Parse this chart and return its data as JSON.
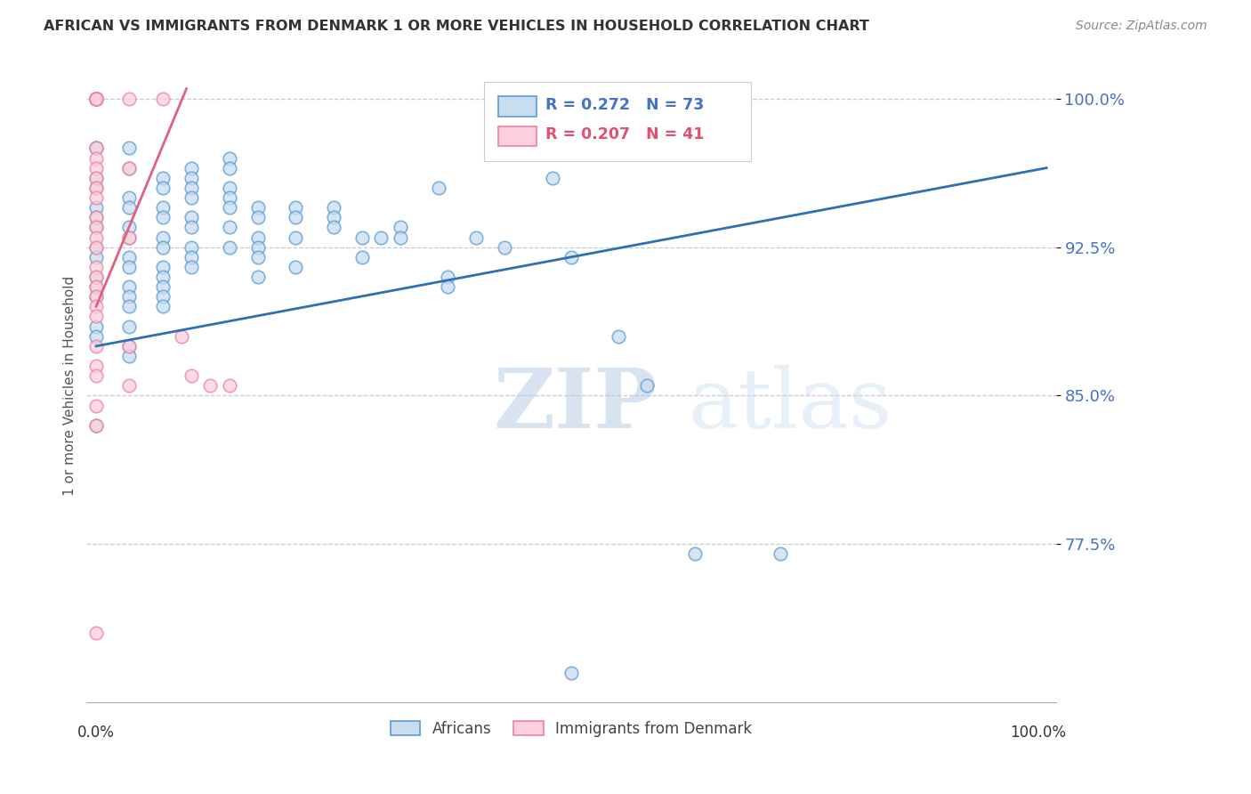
{
  "title": "AFRICAN VS IMMIGRANTS FROM DENMARK 1 OR MORE VEHICLES IN HOUSEHOLD CORRELATION CHART",
  "source": "Source: ZipAtlas.com",
  "ylabel": "1 or more Vehicles in Household",
  "ylim": [
    0.695,
    1.015
  ],
  "xlim": [
    -0.01,
    1.01
  ],
  "yticks": [
    0.775,
    0.85,
    0.925,
    1.0
  ],
  "ytick_labels": [
    "77.5%",
    "85.0%",
    "92.5%",
    "100.0%"
  ],
  "watermark_zip": "ZIP",
  "watermark_atlas": "atlas",
  "legend_labels": [
    "Africans",
    "Immigrants from Denmark"
  ],
  "blue_scatter": [
    [
      0.0,
      1.0
    ],
    [
      0.0,
      1.0
    ],
    [
      0.0,
      1.0
    ],
    [
      0.0,
      1.0
    ],
    [
      0.0,
      1.0
    ],
    [
      0.0,
      0.975
    ],
    [
      0.0,
      0.975
    ],
    [
      0.0,
      0.96
    ],
    [
      0.0,
      0.955
    ],
    [
      0.0,
      0.945
    ],
    [
      0.0,
      0.94
    ],
    [
      0.0,
      0.935
    ],
    [
      0.0,
      0.925
    ],
    [
      0.0,
      0.92
    ],
    [
      0.0,
      0.91
    ],
    [
      0.0,
      0.905
    ],
    [
      0.0,
      0.9
    ],
    [
      0.0,
      0.885
    ],
    [
      0.0,
      0.88
    ],
    [
      0.0,
      0.835
    ],
    [
      0.035,
      0.975
    ],
    [
      0.035,
      0.965
    ],
    [
      0.035,
      0.95
    ],
    [
      0.035,
      0.945
    ],
    [
      0.035,
      0.935
    ],
    [
      0.035,
      0.93
    ],
    [
      0.035,
      0.92
    ],
    [
      0.035,
      0.915
    ],
    [
      0.035,
      0.905
    ],
    [
      0.035,
      0.9
    ],
    [
      0.035,
      0.895
    ],
    [
      0.035,
      0.885
    ],
    [
      0.035,
      0.875
    ],
    [
      0.035,
      0.87
    ],
    [
      0.07,
      0.96
    ],
    [
      0.07,
      0.955
    ],
    [
      0.07,
      0.945
    ],
    [
      0.07,
      0.94
    ],
    [
      0.07,
      0.93
    ],
    [
      0.07,
      0.925
    ],
    [
      0.07,
      0.915
    ],
    [
      0.07,
      0.91
    ],
    [
      0.07,
      0.905
    ],
    [
      0.07,
      0.9
    ],
    [
      0.07,
      0.895
    ],
    [
      0.1,
      0.965
    ],
    [
      0.1,
      0.96
    ],
    [
      0.1,
      0.955
    ],
    [
      0.1,
      0.95
    ],
    [
      0.1,
      0.94
    ],
    [
      0.1,
      0.935
    ],
    [
      0.1,
      0.925
    ],
    [
      0.1,
      0.92
    ],
    [
      0.1,
      0.915
    ],
    [
      0.14,
      0.97
    ],
    [
      0.14,
      0.965
    ],
    [
      0.14,
      0.955
    ],
    [
      0.14,
      0.95
    ],
    [
      0.14,
      0.945
    ],
    [
      0.14,
      0.935
    ],
    [
      0.14,
      0.925
    ],
    [
      0.17,
      0.945
    ],
    [
      0.17,
      0.94
    ],
    [
      0.17,
      0.93
    ],
    [
      0.17,
      0.925
    ],
    [
      0.17,
      0.92
    ],
    [
      0.17,
      0.91
    ],
    [
      0.21,
      0.945
    ],
    [
      0.21,
      0.94
    ],
    [
      0.21,
      0.93
    ],
    [
      0.21,
      0.915
    ],
    [
      0.25,
      0.945
    ],
    [
      0.25,
      0.94
    ],
    [
      0.25,
      0.935
    ],
    [
      0.28,
      0.93
    ],
    [
      0.28,
      0.92
    ],
    [
      0.3,
      0.93
    ],
    [
      0.32,
      0.935
    ],
    [
      0.32,
      0.93
    ],
    [
      0.36,
      0.955
    ],
    [
      0.37,
      0.91
    ],
    [
      0.37,
      0.905
    ],
    [
      0.4,
      0.93
    ],
    [
      0.43,
      0.925
    ],
    [
      0.48,
      0.96
    ],
    [
      0.5,
      0.92
    ],
    [
      0.55,
      0.88
    ],
    [
      0.58,
      0.855
    ],
    [
      0.63,
      0.77
    ],
    [
      0.72,
      0.77
    ],
    [
      0.5,
      0.71
    ]
  ],
  "pink_scatter": [
    [
      0.0,
      1.0
    ],
    [
      0.0,
      1.0
    ],
    [
      0.0,
      1.0
    ],
    [
      0.0,
      1.0
    ],
    [
      0.0,
      1.0
    ],
    [
      0.0,
      1.0
    ],
    [
      0.0,
      1.0
    ],
    [
      0.0,
      1.0
    ],
    [
      0.0,
      0.975
    ],
    [
      0.0,
      0.97
    ],
    [
      0.0,
      0.965
    ],
    [
      0.0,
      0.96
    ],
    [
      0.0,
      0.955
    ],
    [
      0.0,
      0.95
    ],
    [
      0.0,
      0.94
    ],
    [
      0.0,
      0.935
    ],
    [
      0.0,
      0.93
    ],
    [
      0.0,
      0.925
    ],
    [
      0.0,
      0.915
    ],
    [
      0.0,
      0.91
    ],
    [
      0.0,
      0.905
    ],
    [
      0.0,
      0.9
    ],
    [
      0.0,
      0.895
    ],
    [
      0.0,
      0.89
    ],
    [
      0.0,
      0.875
    ],
    [
      0.0,
      0.865
    ],
    [
      0.0,
      0.86
    ],
    [
      0.0,
      0.845
    ],
    [
      0.0,
      0.835
    ],
    [
      0.035,
      1.0
    ],
    [
      0.035,
      0.965
    ],
    [
      0.035,
      0.93
    ],
    [
      0.035,
      0.875
    ],
    [
      0.035,
      0.855
    ],
    [
      0.07,
      1.0
    ],
    [
      0.09,
      0.88
    ],
    [
      0.1,
      0.86
    ],
    [
      0.12,
      0.855
    ],
    [
      0.14,
      0.855
    ],
    [
      0.0,
      0.73
    ]
  ],
  "blue_trend_x": [
    0.0,
    1.0
  ],
  "blue_trend_y": [
    0.875,
    0.965
  ],
  "pink_trend_x": [
    0.0,
    0.095
  ],
  "pink_trend_y": [
    0.895,
    1.005
  ],
  "blue_line_color": "#3070b0",
  "pink_line_color": "#e06080",
  "blue_face": "#c8ddf0",
  "blue_edge": "#5b9bd5",
  "pink_face": "#fbd0dc",
  "pink_edge": "#f080a0",
  "grid_color": "#c8c8d8",
  "title_color": "#333333",
  "source_color": "#888888",
  "ytick_color": "#4472c4",
  "axis_label_color": "#555555",
  "bottom_label_color": "#333333"
}
